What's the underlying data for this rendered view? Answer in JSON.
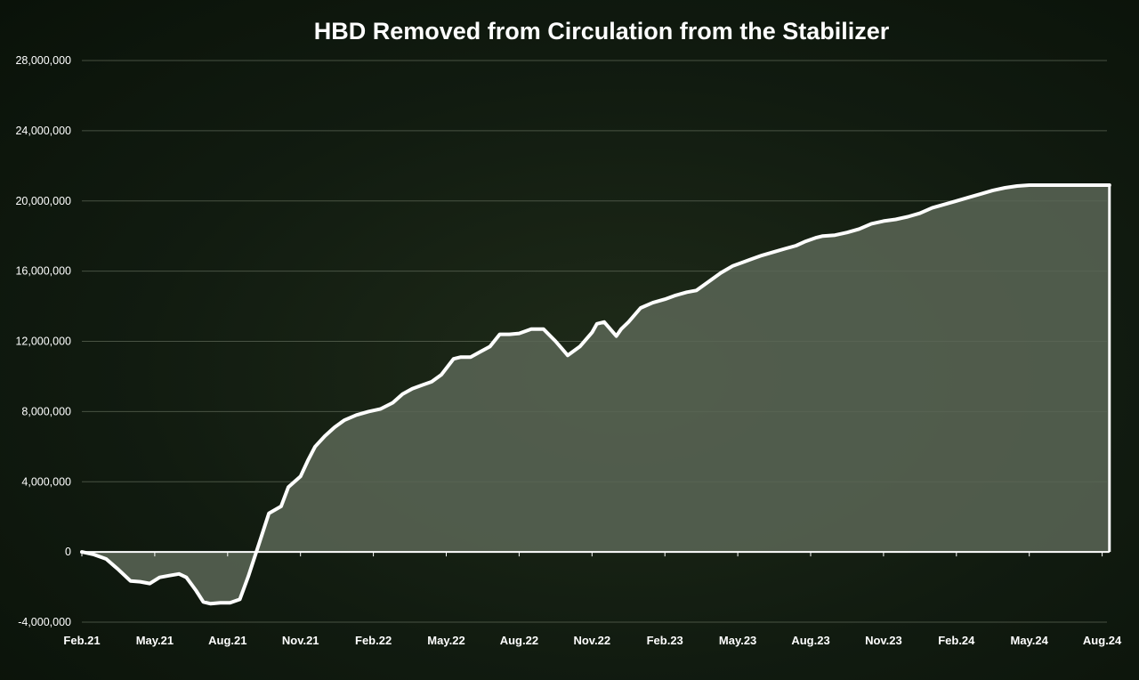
{
  "chart_data": {
    "type": "area",
    "title": "HBD Removed from Circulation from the Stabilizer",
    "xlabel": "",
    "ylabel": "",
    "ylim": [
      -4000000,
      28000000
    ],
    "yticks": [
      -4000000,
      0,
      4000000,
      8000000,
      12000000,
      16000000,
      20000000,
      24000000,
      28000000
    ],
    "ytick_labels": [
      "-4,000,000",
      "0",
      "4,000,000",
      "8,000,000",
      "12,000,000",
      "16,000,000",
      "20,000,000",
      "24,000,000",
      "28,000,000"
    ],
    "xtick_labels": [
      "Feb.21",
      "May.21",
      "Aug.21",
      "Nov.21",
      "Feb.22",
      "May.22",
      "Aug.22",
      "Nov.22",
      "Feb.23",
      "May.23",
      "Aug.23",
      "Nov.23",
      "Feb.24",
      "May.24",
      "Aug.24"
    ],
    "grid": true,
    "legend": "none",
    "colors": {
      "line": "#ffffff",
      "fill": "#5b6656"
    },
    "series": [
      {
        "x": [
          0,
          0.5,
          1,
          1.5,
          2,
          2.4,
          2.8,
          3.2,
          3.6,
          4,
          4.3,
          4.7,
          5,
          5.3,
          5.7,
          6.1,
          6.5,
          6.85,
          7.3,
          7.7,
          8.2,
          8.5,
          9,
          9.3,
          9.6,
          10,
          10.4,
          10.8,
          11.3,
          11.8,
          12.3,
          12.8,
          13.2,
          13.6,
          14,
          14.4,
          14.8,
          15.3,
          15.6,
          16,
          16.4,
          16.8,
          17.2,
          17.6,
          18,
          18.5,
          19,
          19.5,
          20,
          20.5,
          21,
          21.2,
          21.5,
          22,
          22.2,
          22.5,
          23,
          23.5,
          24,
          24.4,
          24.9,
          25.3,
          25.8,
          26.3,
          26.8,
          27.2,
          27.6,
          28,
          28.5,
          29,
          29.4,
          29.8,
          30.2,
          30.5,
          31,
          31.5,
          32,
          32.5,
          33,
          33.5,
          34,
          34.5,
          35,
          35.5,
          36,
          36.5,
          37,
          37.5,
          38,
          38.5,
          39,
          39.5,
          40,
          40.5,
          41,
          41.5,
          42,
          42.3
        ],
        "values": [
          0,
          -150000,
          -400000,
          -1000000,
          -1650000,
          -1700000,
          -1800000,
          -1450000,
          -1350000,
          -1250000,
          -1450000,
          -2200000,
          -2850000,
          -2950000,
          -2900000,
          -2900000,
          -2700000,
          -1400000,
          500000,
          2200000,
          2600000,
          3700000,
          4300000,
          5200000,
          6000000,
          6600000,
          7100000,
          7500000,
          7800000,
          8000000,
          8150000,
          8500000,
          9000000,
          9300000,
          9500000,
          9700000,
          10100000,
          11000000,
          11100000,
          11100000,
          11400000,
          11700000,
          12400000,
          12400000,
          12450000,
          12700000,
          12700000,
          12000000,
          11200000,
          11700000,
          12500000,
          13000000,
          13100000,
          12300000,
          12700000,
          13100000,
          13900000,
          14200000,
          14400000,
          14600000,
          14800000,
          14900000,
          15400000,
          15900000,
          16300000,
          16500000,
          16700000,
          16900000,
          17100000,
          17300000,
          17450000,
          17700000,
          17900000,
          18000000,
          18050000,
          18200000,
          18400000,
          18700000,
          18850000,
          18950000,
          19100000,
          19300000,
          19600000,
          19800000,
          20000000,
          20200000,
          20400000,
          20600000,
          20750000,
          20850000,
          20900000,
          20900000,
          20900000,
          20900000,
          20900000,
          20900000,
          20900000,
          20900000
        ]
      }
    ]
  }
}
